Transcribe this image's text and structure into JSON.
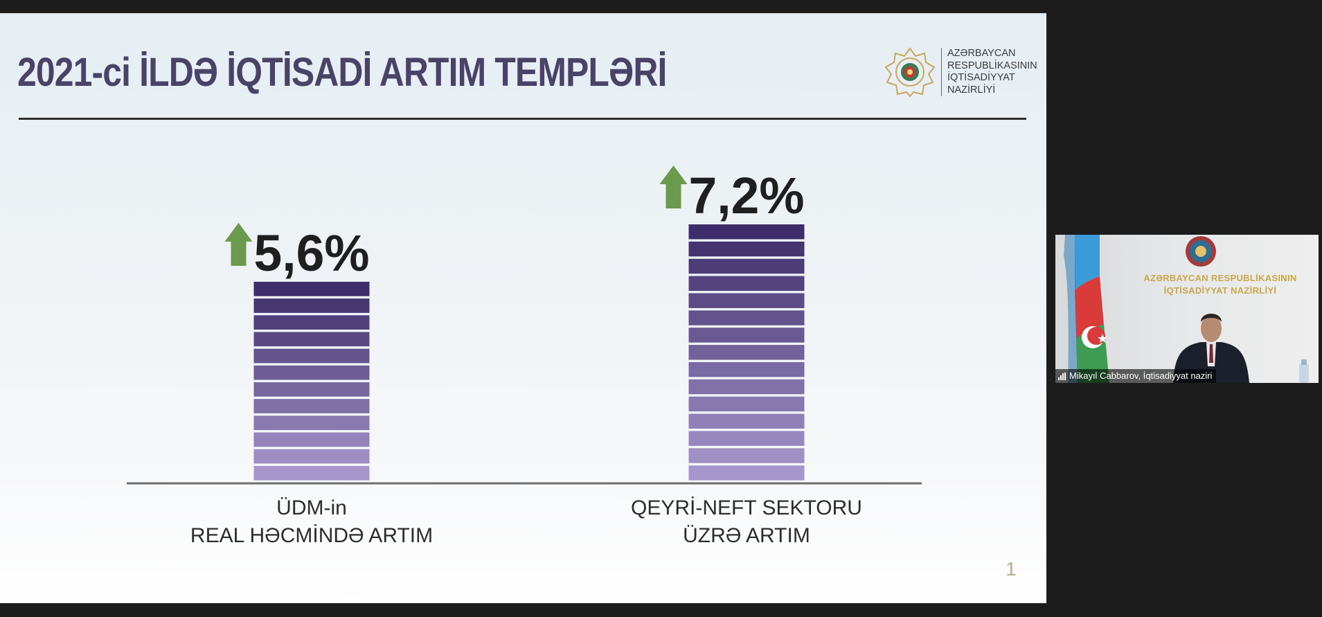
{
  "slide": {
    "title": "2021-ci İLDƏ İQTİSADİ ARTIM TEMPLƏRİ",
    "logo": {
      "emblem_icon": "azerbaijan-emblem-icon",
      "lines": [
        "AZƏRBAYCAN",
        "RESPUBLİKASININ",
        "İQTİSADİYYAT",
        "NAZİRLİYİ"
      ]
    },
    "page_number": "1"
  },
  "chart_data": {
    "type": "bar",
    "categories": [
      "ÜDM-in REAL HƏCMİNDƏ ARTIM",
      "QEYRİ-NEFT SEKTORU ÜZRƏ ARTIM"
    ],
    "values": [
      5.6,
      7.2
    ],
    "value_labels": [
      "5,6%",
      "7,2%"
    ],
    "category_label_lines": [
      [
        "ÜDM-in",
        "REAL HƏCMİNDƏ ARTIM"
      ],
      [
        "QEYRİ-NEFT SEKTORU",
        "ÜZRƏ ARTIM"
      ]
    ],
    "indicator_icon": "arrow-up-icon",
    "colors": {
      "bar_top": "#3d2d6a",
      "bar_bottom": "#a597cc",
      "arrow": "#6b9a4e",
      "value_text": "#1f1f1f",
      "baseline": "#6d6d6d"
    },
    "grid": false,
    "legend": "none"
  },
  "video_tile": {
    "participant": "Mikayıl Cabbarov, İqtisadiyyat naziri",
    "wall_text": [
      "AZƏRBAYCAN RESPUBLİKASININ",
      "İQTİSADİYYAT NAZİRLİYİ"
    ],
    "signal_icon": "signal-strength-icon"
  }
}
